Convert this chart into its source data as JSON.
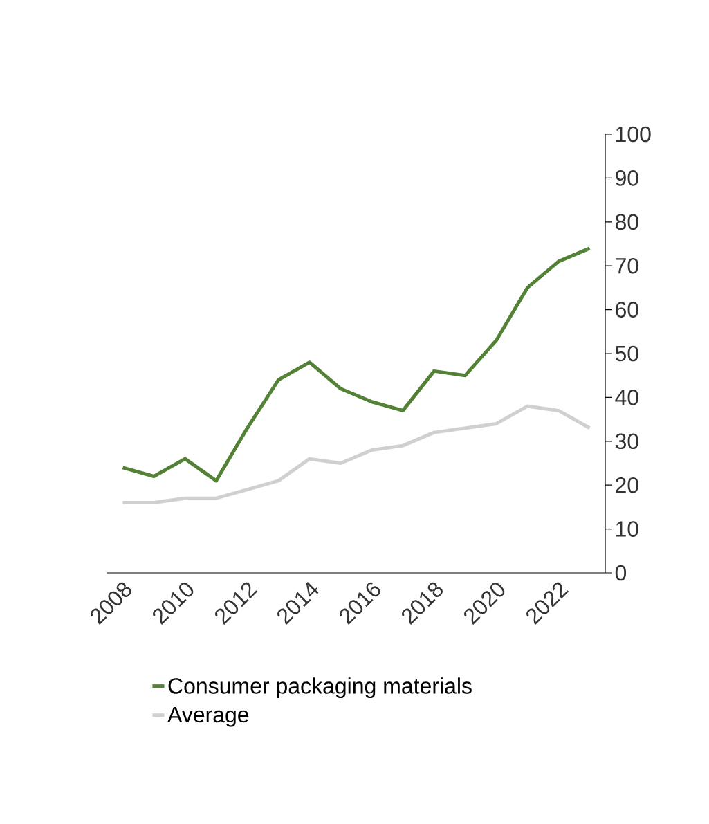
{
  "chart_data": {
    "type": "line",
    "categories": [
      "2008",
      null,
      "2010",
      null,
      "2012",
      null,
      "2014",
      null,
      "2016",
      null,
      "2018",
      null,
      "2020",
      null,
      "2022",
      null
    ],
    "series": [
      {
        "name": "Consumer packaging materials",
        "color": "#538135",
        "values": [
          24,
          22,
          26,
          21,
          33,
          44,
          48,
          42,
          39,
          37,
          46,
          45,
          53,
          65,
          71,
          74
        ]
      },
      {
        "name": "Average",
        "color": "#d0d0d0",
        "values": [
          16,
          16,
          17,
          17,
          19,
          21,
          26,
          25,
          28,
          29,
          32,
          33,
          34,
          38,
          37,
          33
        ]
      }
    ],
    "ylim": [
      0,
      100
    ],
    "yticks": [
      0,
      10,
      20,
      30,
      40,
      50,
      60,
      70,
      80,
      90,
      100
    ],
    "legend": "bottom"
  }
}
